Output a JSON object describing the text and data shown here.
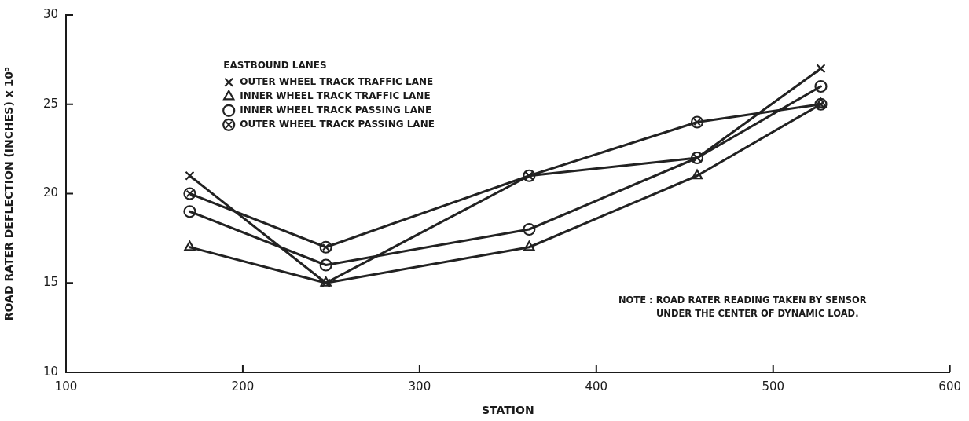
{
  "chart_data": {
    "type": "line",
    "xlabel": "STATION",
    "ylabel": "ROAD RATER DEFLECTION (INCHES) x 10⁵",
    "legend_title": "EASTBOUND LANES",
    "legend": "top left",
    "grid": false,
    "line_style": "solid",
    "annotations": [
      "NOTE : ROAD RATER READING TAKEN BY SENSOR\nUNDER THE CENTER OF DYNAMIC LOAD."
    ],
    "x": [
      170,
      247,
      362,
      457,
      527
    ],
    "xlim": [
      100,
      600
    ],
    "xticks": [
      100,
      200,
      300,
      400,
      500,
      600
    ],
    "ylim": [
      10,
      30
    ],
    "yticks": [
      10,
      15,
      20,
      25,
      30
    ],
    "series": [
      {
        "name": "OUTER WHEEL TRACK TRAFFIC LANE",
        "color": "#222222",
        "marker": "cross",
        "values": [
          21,
          15,
          21,
          22,
          27
        ]
      },
      {
        "name": "INNER WHEEL TRACK TRAFFIC LANE",
        "color": "#222222",
        "marker": "triangle",
        "values": [
          17,
          15,
          17,
          21,
          25
        ]
      },
      {
        "name": "INNER WHEEL TRACK PASSING LANE",
        "color": "#222222",
        "marker": "circle",
        "values": [
          19,
          16,
          18,
          22,
          26
        ]
      },
      {
        "name": "OUTER WHEEL TRACK PASSING LANE",
        "color": "#222222",
        "marker": "cross",
        "values": [
          20,
          17,
          21,
          24,
          25
        ]
      }
    ]
  }
}
